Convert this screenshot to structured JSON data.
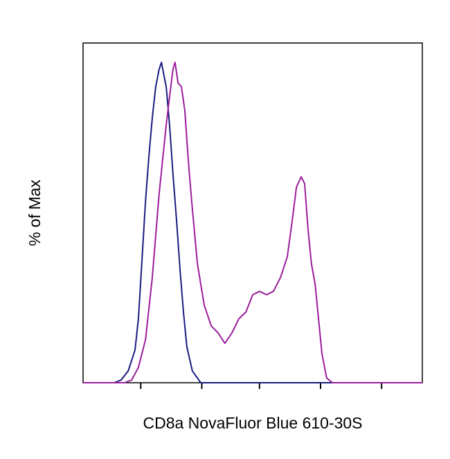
{
  "chart_data": {
    "type": "line",
    "x_label": "CD8a NovaFluor Blue 610-30S",
    "y_label": "% of Max",
    "xlim": [
      0,
      100
    ],
    "ylim": [
      0,
      100
    ],
    "xticks": [
      17,
      35,
      52,
      70,
      88
    ],
    "series": [
      {
        "color": "#1a1a80",
        "x": [
          0,
          9.2,
          11.2,
          13.3,
          15.3,
          16.3,
          17.3,
          18.4,
          19.4,
          20.4,
          21.4,
          22.4,
          23.1,
          23.7,
          24.5,
          25.5,
          26.5,
          27.6,
          28.6,
          29.6,
          30.6,
          32.2,
          34.7,
          100
        ],
        "values": [
          0,
          0,
          0.8,
          3.5,
          9.6,
          18.8,
          35.1,
          53.5,
          66.7,
          78,
          87.1,
          92.2,
          94.3,
          91.2,
          87.1,
          75.9,
          61.6,
          47.3,
          33.1,
          20.8,
          10.6,
          3.5,
          0,
          0
        ]
      },
      {
        "color": "#9b1c9b",
        "x": [
          0,
          12.2,
          14.3,
          16.3,
          18.4,
          20.4,
          22.4,
          24.5,
          25.5,
          26.5,
          27.1,
          28,
          29,
          30,
          31,
          32,
          33.7,
          35.7,
          37.8,
          39.8,
          41.8,
          43.9,
          45.9,
          48,
          50,
          52,
          54.1,
          56.1,
          58.2,
          60.2,
          61.6,
          62.9,
          64.3,
          65.3,
          66.3,
          67.3,
          68.4,
          69.4,
          70.4,
          71.8,
          73.5,
          100
        ],
        "values": [
          0,
          0,
          0.8,
          4.5,
          12.7,
          31,
          55.5,
          75.9,
          84.1,
          92.2,
          94.3,
          88.2,
          87.1,
          80,
          65.7,
          53.5,
          35.1,
          22.9,
          16.7,
          14.7,
          11.6,
          14.7,
          18.8,
          20.8,
          25.9,
          26.9,
          25.9,
          26.9,
          31,
          37.1,
          47.3,
          57.6,
          60.6,
          58.6,
          45.3,
          35.1,
          29,
          18.8,
          8.6,
          1.4,
          0,
          0
        ]
      }
    ]
  }
}
